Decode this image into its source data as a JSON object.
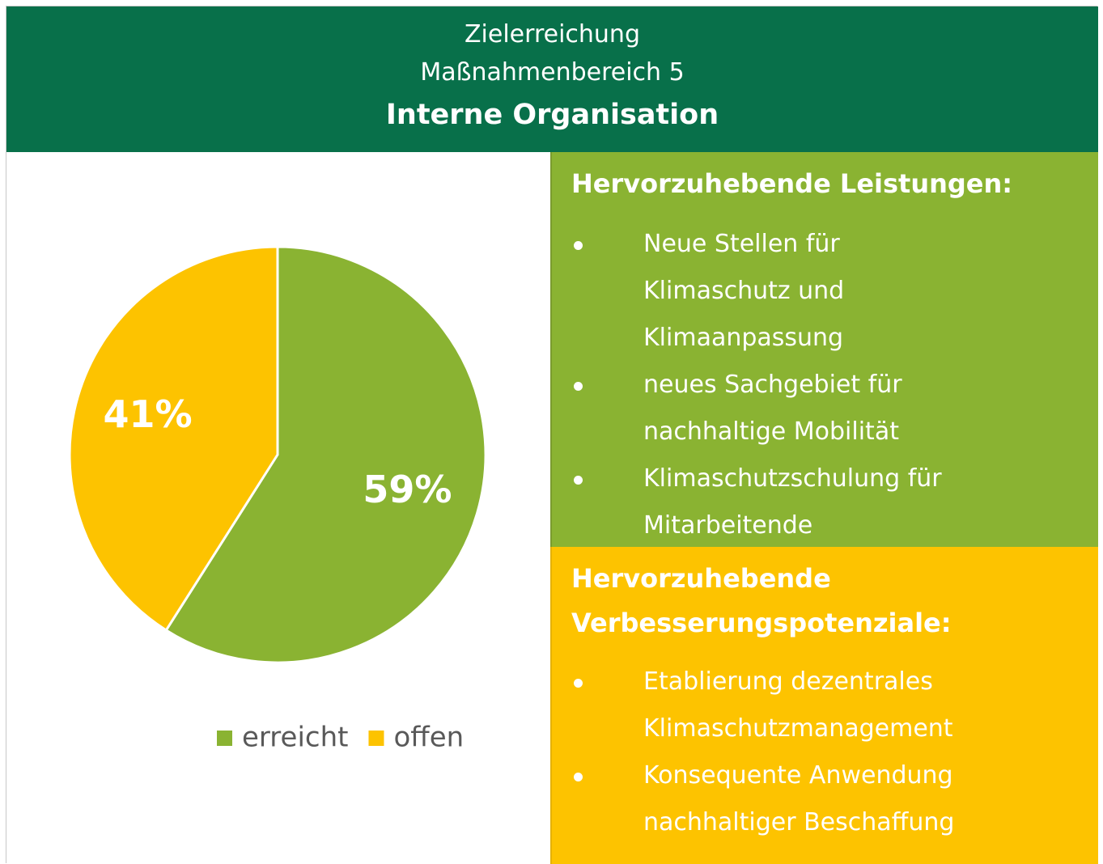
{
  "header": {
    "line1": "Zielerreichung",
    "line2": "Maßnahmenbereich 5",
    "title": "Interne Organisation"
  },
  "chart_data": {
    "type": "pie",
    "categories": [
      "erreicht",
      "offen"
    ],
    "values": [
      59,
      41
    ],
    "value_labels": [
      "59%",
      "41%"
    ],
    "colors": [
      "#8ab332",
      "#fdc300"
    ],
    "legend": "bottom"
  },
  "achievements": {
    "heading": "Hervorzuhebende Leistungen:",
    "items": [
      [
        "Neue Stellen für",
        "Klimaschutz und",
        "Klimaanpassung"
      ],
      [
        "neues Sachgebiet für",
        "nachhaltige Mobilität"
      ],
      [
        "Klimaschutzschulung für",
        "Mitarbeitende"
      ]
    ]
  },
  "improvements": {
    "heading": "Hervorzuhebende Verbesserungspotenziale:",
    "items": [
      [
        "Etablierung dezentrales",
        "Klimaschutzmanagement"
      ],
      [
        "Konsequente Anwendung",
        "nachhaltiger Beschaffung"
      ]
    ]
  }
}
